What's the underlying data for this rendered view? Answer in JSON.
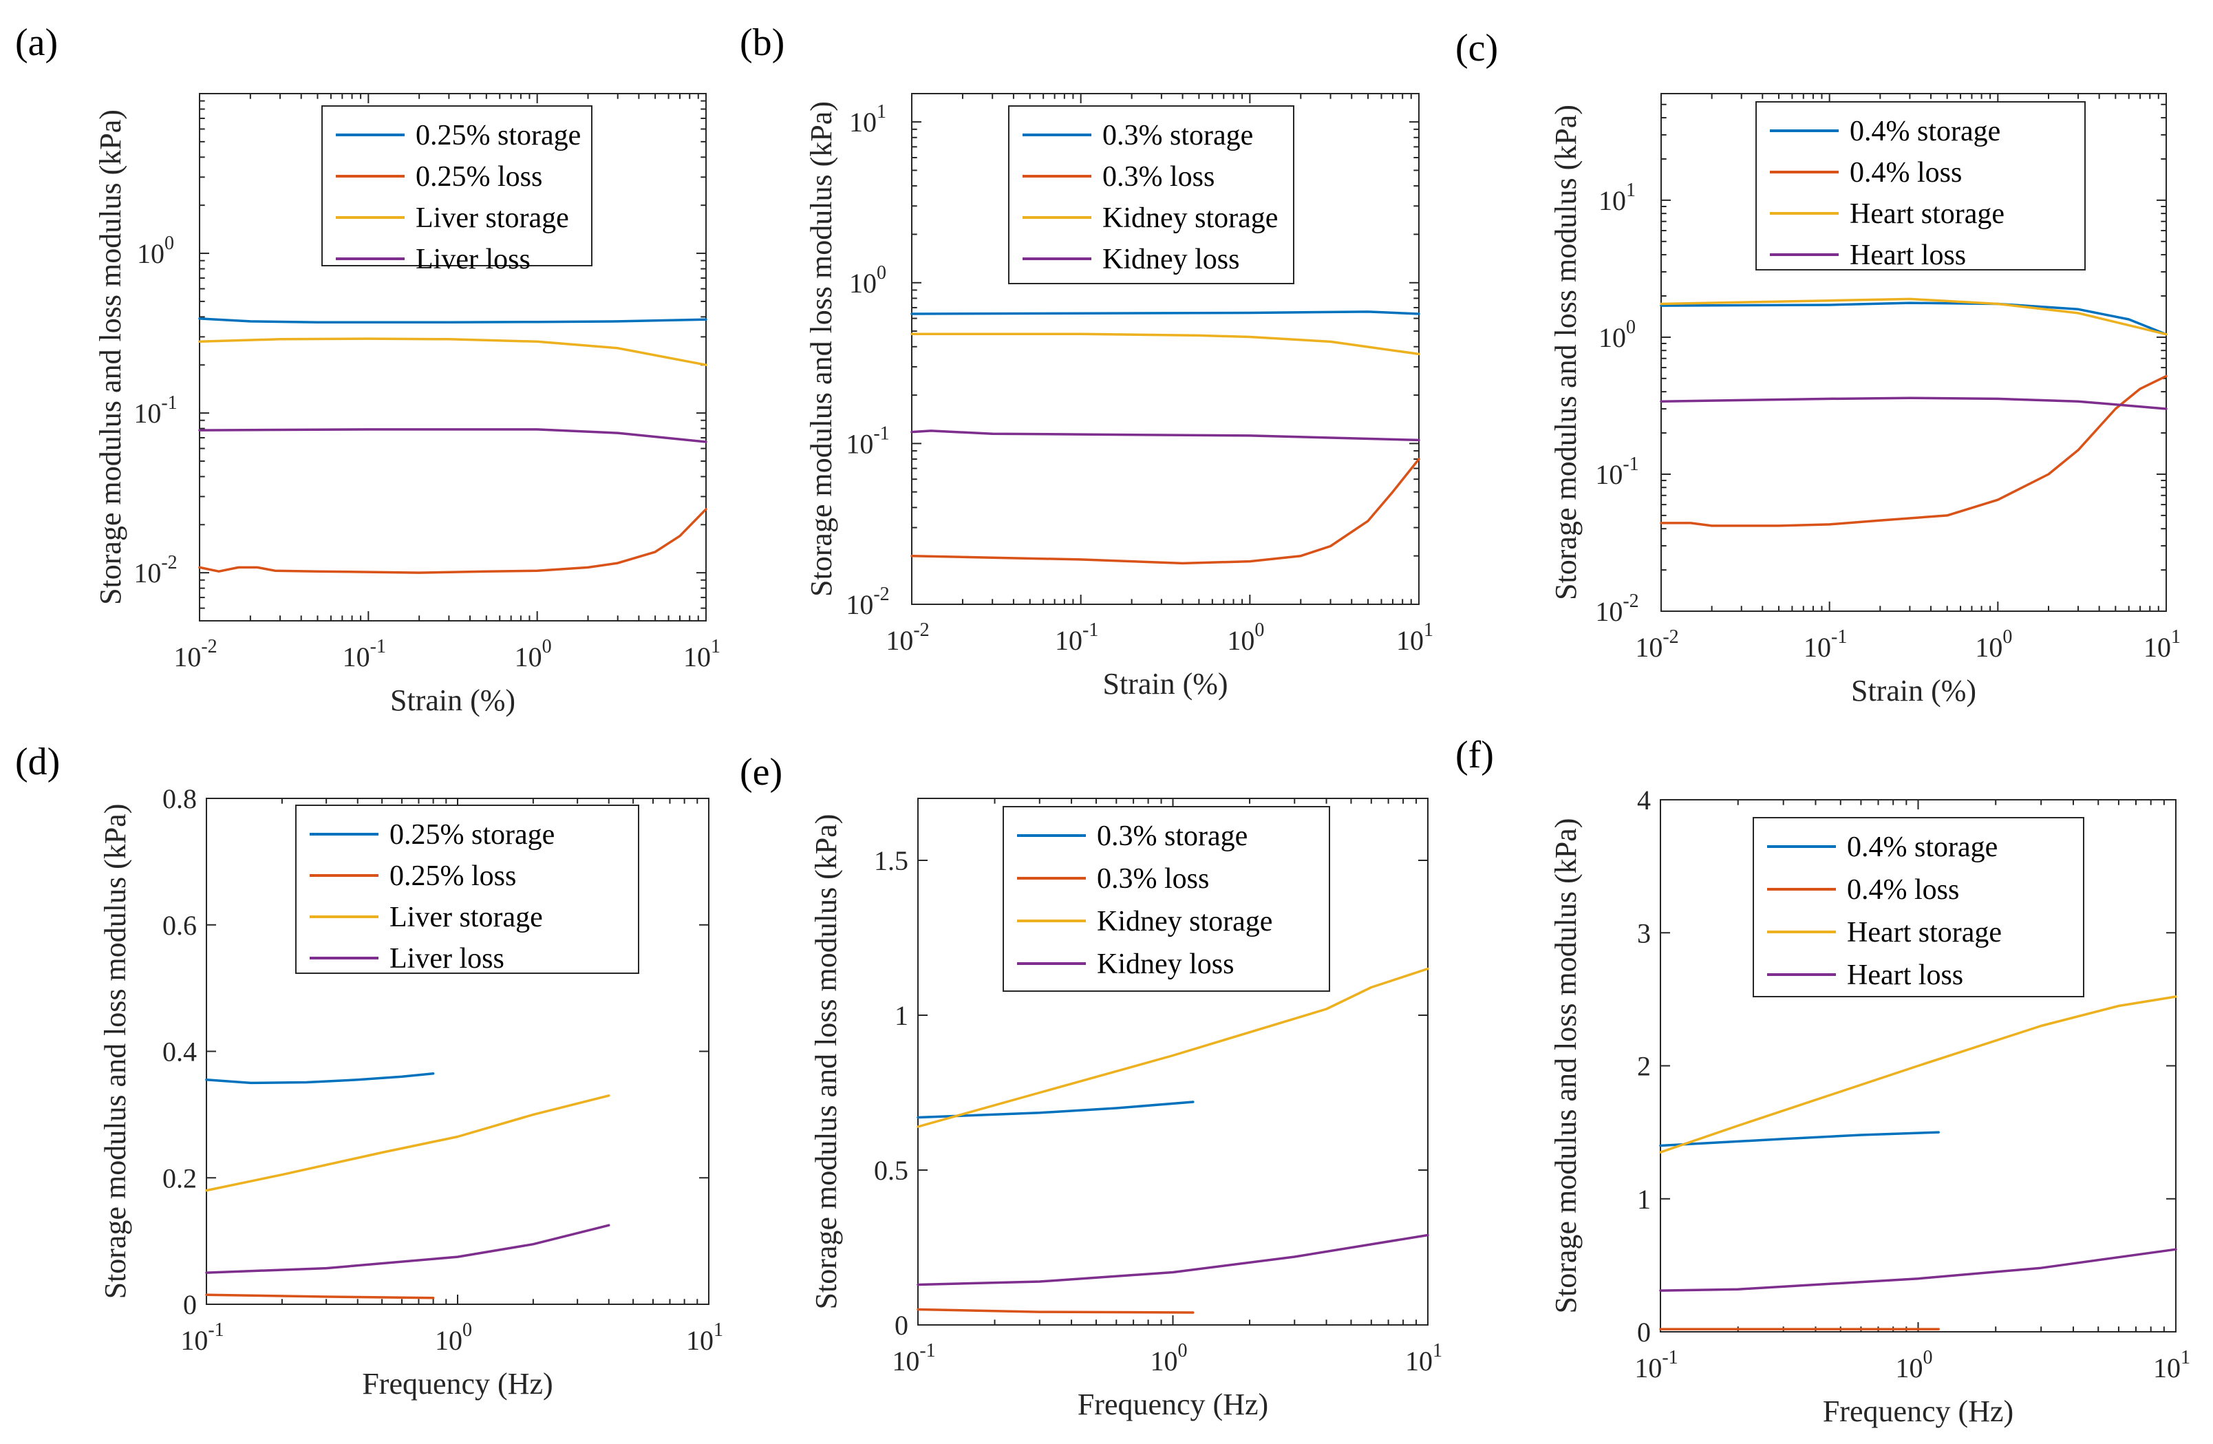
{
  "colors": {
    "storage_sample": "#0072BD",
    "loss_sample": "#D95319",
    "storage_tissue": "#EDB120",
    "loss_tissue": "#7E2F8E"
  },
  "chart_data": [
    {
      "panel": "(a)",
      "type": "line",
      "xscale": "log",
      "yscale": "log",
      "xlim": [
        0.01,
        10
      ],
      "ylim": [
        0.005,
        10
      ],
      "xticks": [
        {
          "v": 0.01,
          "b": "10",
          "e": "-2"
        },
        {
          "v": 0.1,
          "b": "10",
          "e": "-1"
        },
        {
          "v": 1,
          "b": "10",
          "e": "0"
        },
        {
          "v": 10,
          "b": "10",
          "e": "1"
        }
      ],
      "yticks": [
        {
          "v": 0.01,
          "b": "10",
          "e": "-2"
        },
        {
          "v": 0.1,
          "b": "10",
          "e": "-1"
        },
        {
          "v": 1,
          "b": "10",
          "e": "0"
        }
      ],
      "xlabel": "Strain (%)",
      "ylabel": "Storage modulus and loss modulus (kPa)",
      "legend_position": "top-center",
      "series": [
        {
          "name": "0.25% storage",
          "color": "#0072BD",
          "x": [
            0.01,
            0.02,
            0.05,
            0.1,
            0.3,
            1,
            3,
            10
          ],
          "y": [
            0.39,
            0.375,
            0.37,
            0.37,
            0.37,
            0.372,
            0.375,
            0.385
          ]
        },
        {
          "name": "0.25% loss",
          "color": "#D95319",
          "x": [
            0.01,
            0.013,
            0.017,
            0.022,
            0.028,
            0.05,
            0.1,
            0.2,
            0.5,
            1,
            2,
            3,
            5,
            7,
            10
          ],
          "y": [
            0.0108,
            0.0102,
            0.0108,
            0.0108,
            0.0103,
            0.0102,
            0.0101,
            0.01,
            0.0102,
            0.0103,
            0.0108,
            0.0115,
            0.0135,
            0.017,
            0.025
          ]
        },
        {
          "name": "Liver storage",
          "color": "#EDB120",
          "x": [
            0.01,
            0.03,
            0.1,
            0.3,
            1,
            3,
            10
          ],
          "y": [
            0.28,
            0.29,
            0.292,
            0.29,
            0.28,
            0.255,
            0.2
          ]
        },
        {
          "name": "Liver loss",
          "color": "#7E2F8E",
          "x": [
            0.01,
            0.1,
            1,
            3,
            10
          ],
          "y": [
            0.078,
            0.079,
            0.079,
            0.075,
            0.066
          ]
        }
      ]
    },
    {
      "panel": "(b)",
      "type": "line",
      "xscale": "log",
      "yscale": "log",
      "xlim": [
        0.01,
        10
      ],
      "ylim": [
        0.01,
        15
      ],
      "xticks": [
        {
          "v": 0.01,
          "b": "10",
          "e": "-2"
        },
        {
          "v": 0.1,
          "b": "10",
          "e": "-1"
        },
        {
          "v": 1,
          "b": "10",
          "e": "0"
        },
        {
          "v": 10,
          "b": "10",
          "e": "1"
        }
      ],
      "yticks": [
        {
          "v": 0.01,
          "b": "10",
          "e": "-2"
        },
        {
          "v": 0.1,
          "b": "10",
          "e": "-1"
        },
        {
          "v": 1,
          "b": "10",
          "e": "0"
        },
        {
          "v": 10,
          "b": "10",
          "e": "1"
        }
      ],
      "xlabel": "Strain (%)",
      "ylabel": "Storage modulus and loss modulus (kPa)",
      "legend_position": "top-center",
      "series": [
        {
          "name": "0.3% storage",
          "color": "#0072BD",
          "x": [
            0.01,
            0.1,
            1,
            5,
            10
          ],
          "y": [
            0.64,
            0.645,
            0.65,
            0.66,
            0.64
          ]
        },
        {
          "name": "0.3% loss",
          "color": "#D95319",
          "x": [
            0.01,
            0.03,
            0.1,
            0.2,
            0.4,
            1,
            2,
            3,
            5,
            7,
            10
          ],
          "y": [
            0.02,
            0.0195,
            0.019,
            0.0185,
            0.018,
            0.0185,
            0.02,
            0.023,
            0.033,
            0.05,
            0.08
          ]
        },
        {
          "name": "Kidney storage",
          "color": "#EDB120",
          "x": [
            0.01,
            0.1,
            0.5,
            1,
            3,
            10
          ],
          "y": [
            0.48,
            0.48,
            0.47,
            0.46,
            0.43,
            0.36
          ]
        },
        {
          "name": "Kidney loss",
          "color": "#7E2F8E",
          "x": [
            0.01,
            0.013,
            0.03,
            0.1,
            1,
            10
          ],
          "y": [
            0.118,
            0.12,
            0.115,
            0.114,
            0.112,
            0.105
          ]
        }
      ]
    },
    {
      "panel": "(c)",
      "type": "line",
      "xscale": "log",
      "yscale": "log",
      "xlim": [
        0.01,
        10
      ],
      "ylim": [
        0.01,
        60
      ],
      "xticks": [
        {
          "v": 0.01,
          "b": "10",
          "e": "-2"
        },
        {
          "v": 0.1,
          "b": "10",
          "e": "-1"
        },
        {
          "v": 1,
          "b": "10",
          "e": "0"
        },
        {
          "v": 10,
          "b": "10",
          "e": "1"
        }
      ],
      "yticks": [
        {
          "v": 0.01,
          "b": "10",
          "e": "-2"
        },
        {
          "v": 0.1,
          "b": "10",
          "e": "-1"
        },
        {
          "v": 1,
          "b": "10",
          "e": "0"
        },
        {
          "v": 10,
          "b": "10",
          "e": "1"
        }
      ],
      "xlabel": "Strain (%)",
      "ylabel": "Storage modulus and loss modulus (kPa)",
      "legend_position": "top-center",
      "series": [
        {
          "name": "0.4% storage",
          "color": "#0072BD",
          "x": [
            0.01,
            0.1,
            0.3,
            1,
            3,
            6,
            10
          ],
          "y": [
            1.7,
            1.72,
            1.78,
            1.75,
            1.6,
            1.35,
            1.05
          ]
        },
        {
          "name": "0.4% loss",
          "color": "#D95319",
          "x": [
            0.01,
            0.015,
            0.02,
            0.05,
            0.1,
            0.2,
            0.5,
            1,
            2,
            3,
            5,
            7,
            10
          ],
          "y": [
            0.044,
            0.044,
            0.042,
            0.042,
            0.043,
            0.046,
            0.05,
            0.065,
            0.1,
            0.15,
            0.3,
            0.42,
            0.52
          ]
        },
        {
          "name": "Heart storage",
          "color": "#EDB120",
          "x": [
            0.01,
            0.1,
            0.3,
            1,
            3,
            10
          ],
          "y": [
            1.75,
            1.85,
            1.9,
            1.75,
            1.5,
            1.05
          ]
        },
        {
          "name": "Heart loss",
          "color": "#7E2F8E",
          "x": [
            0.01,
            0.1,
            0.3,
            1,
            3,
            10
          ],
          "y": [
            0.34,
            0.355,
            0.36,
            0.355,
            0.34,
            0.3
          ]
        }
      ]
    },
    {
      "panel": "(d)",
      "type": "line",
      "xscale": "log",
      "yscale": "linear",
      "xlim": [
        0.1,
        10
      ],
      "ylim": [
        0,
        0.8
      ],
      "xticks": [
        {
          "v": 0.1,
          "b": "10",
          "e": "-1"
        },
        {
          "v": 1,
          "b": "10",
          "e": "0"
        },
        {
          "v": 10,
          "b": "10",
          "e": "1"
        }
      ],
      "yticks": [
        {
          "v": 0,
          "t": "0"
        },
        {
          "v": 0.2,
          "t": "0.2"
        },
        {
          "v": 0.4,
          "t": "0.4"
        },
        {
          "v": 0.6,
          "t": "0.6"
        },
        {
          "v": 0.8,
          "t": "0.8"
        }
      ],
      "xlabel": "Frequency (Hz)",
      "ylabel": "Storage modulus and loss modulus (kPa)",
      "legend_position": "top-center",
      "series": [
        {
          "name": "0.25% storage",
          "color": "#0072BD",
          "x": [
            0.1,
            0.15,
            0.25,
            0.4,
            0.6,
            0.8
          ],
          "y": [
            0.355,
            0.35,
            0.351,
            0.355,
            0.36,
            0.365
          ]
        },
        {
          "name": "0.25% loss",
          "color": "#D95319",
          "x": [
            0.1,
            0.3,
            0.8
          ],
          "y": [
            0.015,
            0.012,
            0.01
          ]
        },
        {
          "name": "Liver storage",
          "color": "#EDB120",
          "x": [
            0.1,
            0.2,
            0.5,
            1,
            2,
            4
          ],
          "y": [
            0.18,
            0.205,
            0.24,
            0.265,
            0.3,
            0.33
          ]
        },
        {
          "name": "Liver loss",
          "color": "#7E2F8E",
          "x": [
            0.1,
            0.3,
            1,
            2,
            4
          ],
          "y": [
            0.05,
            0.057,
            0.075,
            0.095,
            0.125
          ]
        }
      ]
    },
    {
      "panel": "(e)",
      "type": "line",
      "xscale": "log",
      "yscale": "linear",
      "xlim": [
        0.1,
        10
      ],
      "ylim": [
        0,
        1.7
      ],
      "xticks": [
        {
          "v": 0.1,
          "b": "10",
          "e": "-1"
        },
        {
          "v": 1,
          "b": "10",
          "e": "0"
        },
        {
          "v": 10,
          "b": "10",
          "e": "1"
        }
      ],
      "yticks": [
        {
          "v": 0,
          "t": "0"
        },
        {
          "v": 0.5,
          "t": "0.5"
        },
        {
          "v": 1,
          "t": "1"
        },
        {
          "v": 1.5,
          "t": "1.5"
        }
      ],
      "xlabel": "Frequency (Hz)",
      "ylabel": "Storage modulus and loss modulus (kPa)",
      "legend_position": "top-center",
      "series": [
        {
          "name": "0.3% storage",
          "color": "#0072BD",
          "x": [
            0.1,
            0.3,
            0.6,
            1.2
          ],
          "y": [
            0.67,
            0.685,
            0.7,
            0.72
          ]
        },
        {
          "name": "0.3% loss",
          "color": "#D95319",
          "x": [
            0.1,
            0.3,
            1.2
          ],
          "y": [
            0.05,
            0.042,
            0.04
          ]
        },
        {
          "name": "Kidney storage",
          "color": "#EDB120",
          "x": [
            0.1,
            0.3,
            1,
            4,
            6,
            10
          ],
          "y": [
            0.64,
            0.75,
            0.87,
            1.02,
            1.09,
            1.15
          ]
        },
        {
          "name": "Kidney loss",
          "color": "#7E2F8E",
          "x": [
            0.1,
            0.3,
            1,
            3,
            10
          ],
          "y": [
            0.13,
            0.14,
            0.17,
            0.22,
            0.29
          ]
        }
      ]
    },
    {
      "panel": "(f)",
      "type": "line",
      "xscale": "log",
      "yscale": "linear",
      "xlim": [
        0.1,
        10
      ],
      "ylim": [
        0,
        4
      ],
      "xticks": [
        {
          "v": 0.1,
          "b": "10",
          "e": "-1"
        },
        {
          "v": 1,
          "b": "10",
          "e": "0"
        },
        {
          "v": 10,
          "b": "10",
          "e": "1"
        }
      ],
      "yticks": [
        {
          "v": 0,
          "t": "0"
        },
        {
          "v": 1,
          "t": "1"
        },
        {
          "v": 2,
          "t": "2"
        },
        {
          "v": 3,
          "t": "3"
        },
        {
          "v": 4,
          "t": "4"
        }
      ],
      "xlabel": "Frequency (Hz)",
      "ylabel": "Storage modulus and loss modulus (kPa)",
      "legend_position": "top-center",
      "series": [
        {
          "name": "0.4% storage",
          "color": "#0072BD",
          "x": [
            0.1,
            0.3,
            0.6,
            1.2
          ],
          "y": [
            1.4,
            1.45,
            1.48,
            1.5
          ]
        },
        {
          "name": "0.4% loss",
          "color": "#D95319",
          "x": [
            0.1,
            1.2
          ],
          "y": [
            0.02,
            0.02
          ]
        },
        {
          "name": "Heart storage",
          "color": "#EDB120",
          "x": [
            0.1,
            0.2,
            1,
            3,
            6,
            10
          ],
          "y": [
            1.35,
            1.55,
            2.0,
            2.3,
            2.45,
            2.52
          ]
        },
        {
          "name": "Heart loss",
          "color": "#7E2F8E",
          "x": [
            0.1,
            0.2,
            1,
            3,
            10
          ],
          "y": [
            0.31,
            0.32,
            0.4,
            0.48,
            0.62
          ]
        }
      ]
    }
  ]
}
